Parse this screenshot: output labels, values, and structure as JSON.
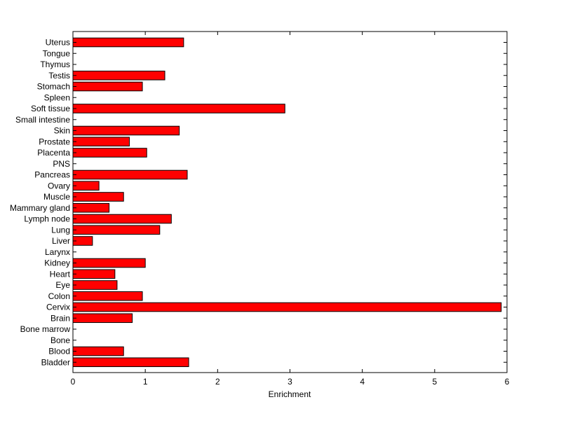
{
  "chart_data": {
    "type": "bar",
    "orientation": "horizontal",
    "categories": [
      "Uterus",
      "Tongue",
      "Thymus",
      "Testis",
      "Stomach",
      "Spleen",
      "Soft tissue",
      "Small intestine",
      "Skin",
      "Prostate",
      "Placenta",
      "PNS",
      "Pancreas",
      "Ovary",
      "Muscle",
      "Mammary gland",
      "Lymph node",
      "Lung",
      "Liver",
      "Larynx",
      "Kidney",
      "Heart",
      "Eye",
      "Colon",
      "Cervix",
      "Brain",
      "Bone marrow",
      "Bone",
      "Blood",
      "Bladder"
    ],
    "values": [
      1.53,
      0,
      0,
      1.27,
      0.96,
      0,
      2.93,
      0,
      1.47,
      0.78,
      1.02,
      0,
      1.58,
      0.36,
      0.7,
      0.5,
      1.36,
      1.2,
      0.27,
      0,
      1.0,
      0.58,
      0.61,
      0.96,
      5.92,
      0.82,
      0,
      0,
      0.7,
      1.6
    ],
    "xlabel": "Enrichment",
    "ylabel": "",
    "title": "",
    "xlim": [
      0,
      6
    ],
    "xticks": [
      "0",
      "1",
      "2",
      "3",
      "4",
      "5",
      "6"
    ],
    "grid": false,
    "colors": {
      "bar_fill": "#ff0000",
      "bar_edge": "#000000",
      "axis": "#000000"
    }
  }
}
